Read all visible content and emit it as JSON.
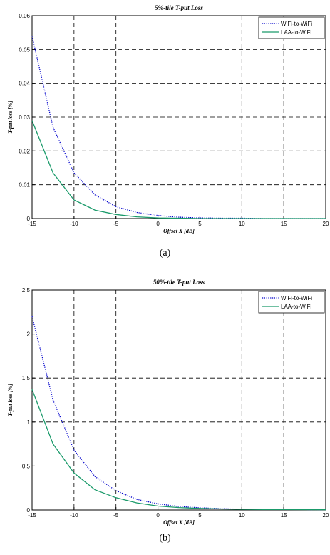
{
  "chart_data": [
    {
      "type": "line",
      "title": "5%-tile T-put Loss",
      "xlabel": "Offset X [dB]",
      "ylabel": "T-put loss [%]",
      "xlim": [
        -15,
        20
      ],
      "ylim": [
        0,
        0.06
      ],
      "xticks": [
        "-15",
        "-10",
        "-5",
        "0",
        "5",
        "10",
        "15",
        "20"
      ],
      "yticks": [
        "0",
        "0.01",
        "0.02",
        "0.03",
        "0.04",
        "0.05",
        "0.06"
      ],
      "grid": true,
      "legend_position": "top-right",
      "x": [
        -15,
        -12.5,
        -10,
        -7.5,
        -5,
        -2.5,
        0,
        2.5,
        5,
        7.5,
        10,
        12.5,
        15,
        17.5,
        20
      ],
      "series": [
        {
          "name": "WiFi-to-WiFi",
          "color": "#0000cc",
          "style": "dotted",
          "values": [
            0.054,
            0.027,
            0.0135,
            0.007,
            0.0035,
            0.0018,
            0.0009,
            0.0004,
            0.0002,
            0.0001,
            0.0001,
            0.0,
            0.0,
            0.0,
            0.0
          ]
        },
        {
          "name": "LAA-to-WiFi",
          "color": "#1a9a6a",
          "style": "solid",
          "values": [
            0.029,
            0.0135,
            0.0055,
            0.0025,
            0.0012,
            0.0005,
            0.0002,
            0.0001,
            0.0,
            0.0,
            0.0,
            0.0,
            0.0,
            0.0,
            0.0
          ]
        }
      ]
    },
    {
      "type": "line",
      "title": "50%-tile T-put Loss",
      "xlabel": "Offset X [dB]",
      "ylabel": "T-put loss [%]",
      "xlim": [
        -15,
        20
      ],
      "ylim": [
        0,
        2.5
      ],
      "xticks": [
        "-15",
        "-10",
        "-5",
        "0",
        "5",
        "10",
        "15",
        "20"
      ],
      "yticks": [
        "0",
        "0.5",
        "1",
        "1.5",
        "2",
        "2.5"
      ],
      "grid": true,
      "legend_position": "top-right",
      "x": [
        -15,
        -12.5,
        -10,
        -7.5,
        -5,
        -2.5,
        0,
        2.5,
        5,
        7.5,
        10,
        12.5,
        15,
        17.5,
        20
      ],
      "series": [
        {
          "name": "WiFi-to-WiFi",
          "color": "#0000cc",
          "style": "dotted",
          "values": [
            2.2,
            1.25,
            0.68,
            0.38,
            0.22,
            0.12,
            0.07,
            0.04,
            0.025,
            0.015,
            0.01,
            0.008,
            0.006,
            0.005,
            0.004
          ]
        },
        {
          "name": "LAA-to-WiFi",
          "color": "#1a9a6a",
          "style": "solid",
          "values": [
            1.37,
            0.75,
            0.42,
            0.23,
            0.14,
            0.08,
            0.045,
            0.028,
            0.018,
            0.012,
            0.008,
            0.006,
            0.005,
            0.004,
            0.003
          ]
        }
      ]
    }
  ],
  "captions": [
    "(a)",
    "(b)"
  ]
}
